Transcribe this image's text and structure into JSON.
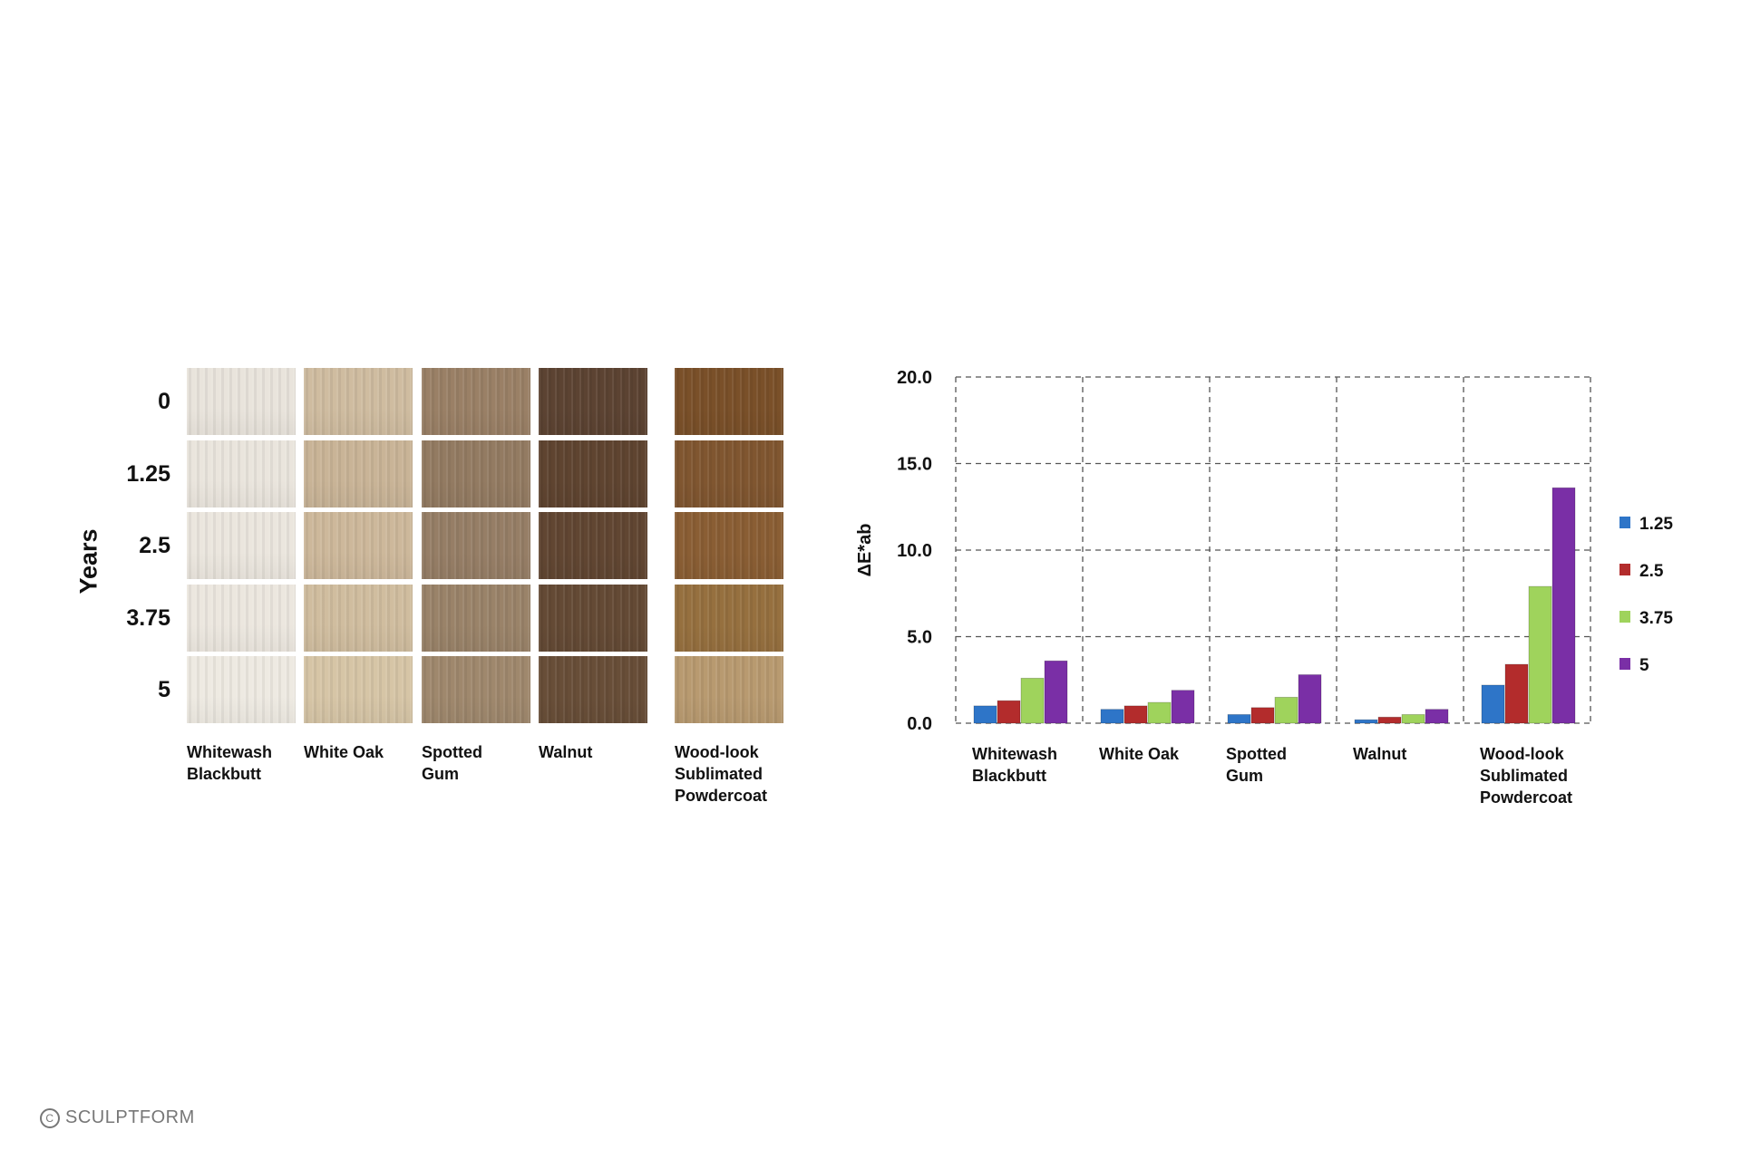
{
  "swatch_figure": {
    "axis_title": "Years",
    "years": [
      "0",
      "1.25",
      "2.5",
      "3.75",
      "5"
    ],
    "materials": [
      "Whitewash\nBlackbutt",
      "White Oak",
      "Spotted\nGum",
      "Walnut",
      "Wood-look\nSublimated\nPowdercoat"
    ],
    "swatch_colors": [
      [
        "#e9e4dc",
        "#cfbca0",
        "#9a8066",
        "#5c4332",
        "#7a5029"
      ],
      [
        "#eae5dd",
        "#c9b497",
        "#937b62",
        "#5f4430",
        "#805630"
      ],
      [
        "#ebe6de",
        "#cdb89b",
        "#967e66",
        "#614632",
        "#8a5e34"
      ],
      [
        "#ece7df",
        "#d0bd9f",
        "#9a8369",
        "#644a35",
        "#96703f"
      ],
      [
        "#eeeae2",
        "#d6c5a6",
        "#9f886d",
        "#684e38",
        "#b89a70"
      ]
    ]
  },
  "chart_data": {
    "type": "bar",
    "categories": [
      "Whitewash\nBlackbutt",
      "White Oak",
      "Spotted\nGum",
      "Walnut",
      "Wood-look\nSublimated\nPowdercoat"
    ],
    "series": [
      {
        "name": "1.25",
        "color": "#2e75c8",
        "values": [
          1.0,
          0.8,
          0.5,
          0.2,
          2.2
        ]
      },
      {
        "name": "2.5",
        "color": "#b32c2c",
        "values": [
          1.3,
          1.0,
          0.9,
          0.35,
          3.4
        ]
      },
      {
        "name": "3.75",
        "color": "#9fd35c",
        "values": [
          2.6,
          1.2,
          1.5,
          0.5,
          7.9
        ]
      },
      {
        "name": "5",
        "color": "#7a2fa6",
        "values": [
          3.6,
          1.9,
          2.8,
          0.8,
          13.6
        ]
      }
    ],
    "ylabel": "ΔE*ab",
    "ylim": [
      0,
      20
    ],
    "yticks": [
      "0.0",
      "5.0",
      "10.0",
      "15.0",
      "20.0"
    ],
    "grid": true,
    "legend_position": "right"
  },
  "footer": {
    "copyright_symbol": "C",
    "brand": "SCULPTFORM"
  }
}
